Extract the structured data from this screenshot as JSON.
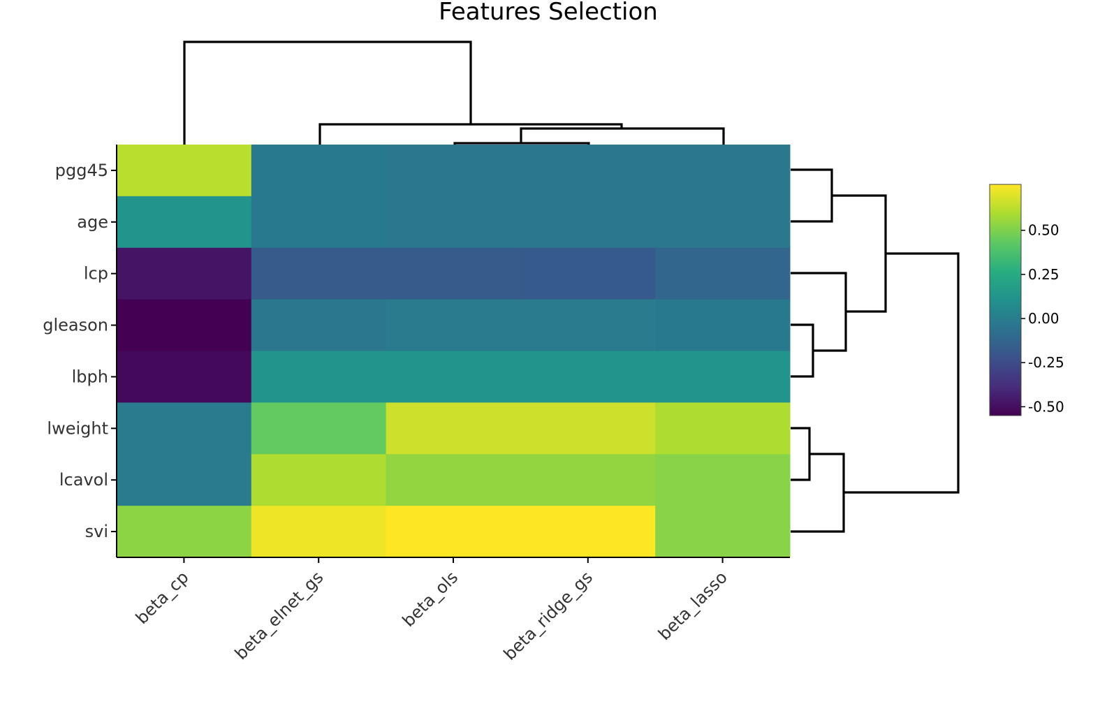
{
  "chart_data": {
    "type": "heatmap",
    "title": "Features Selection",
    "x_categories": [
      "beta_cp",
      "beta_elnet_gs",
      "beta_ols",
      "beta_ridge_gs",
      "beta_lasso"
    ],
    "y_categories": [
      "pgg45",
      "age",
      "lcp",
      "gleason",
      "lbph",
      "lweight",
      "lcavol",
      "svi"
    ],
    "values": [
      [
        0.62,
        -0.02,
        -0.03,
        -0.03,
        -0.03
      ],
      [
        0.12,
        -0.02,
        -0.03,
        -0.03,
        -0.03
      ],
      [
        -0.48,
        -0.17,
        -0.17,
        -0.18,
        -0.12
      ],
      [
        -0.55,
        -0.03,
        -0.01,
        -0.01,
        -0.02
      ],
      [
        -0.52,
        0.12,
        0.12,
        0.12,
        0.12
      ],
      [
        -0.01,
        0.44,
        0.66,
        0.66,
        0.6
      ],
      [
        -0.01,
        0.6,
        0.54,
        0.54,
        0.52
      ],
      [
        0.53,
        0.73,
        0.76,
        0.76,
        0.52
      ]
    ],
    "zmin": -0.55,
    "zmax": 0.76,
    "colorscale": "viridis",
    "colorbar": {
      "ticks": [
        0.5,
        0.25,
        0.0,
        -0.25,
        -0.5
      ],
      "tick_labels": [
        "0.50",
        "0.25",
        "0.00",
        "-0.25",
        "-0.50"
      ]
    },
    "dendrograms": {
      "columns": "top",
      "rows": "right"
    }
  }
}
